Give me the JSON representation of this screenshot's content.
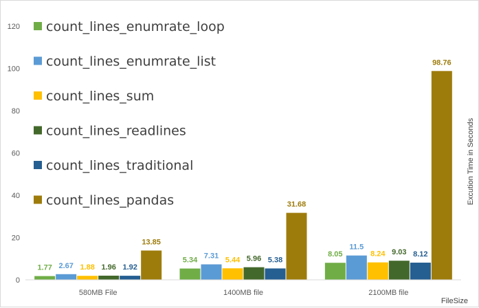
{
  "chart_data": {
    "type": "bar",
    "categories": [
      "580MB File",
      "1400MB file",
      "2100MB file"
    ],
    "series": [
      {
        "name": "count_lines_enumrate_loop",
        "color": "#70ad47",
        "values": [
          1.77,
          5.34,
          8.05
        ]
      },
      {
        "name": "count_lines_enumrate_list",
        "color": "#5b9bd5",
        "values": [
          2.67,
          7.31,
          11.5
        ]
      },
      {
        "name": "count_lines_sum",
        "color": "#ffc000",
        "values": [
          1.88,
          5.44,
          8.24
        ]
      },
      {
        "name": "count_lines_readlines",
        "color": "#43682b",
        "values": [
          1.96,
          5.96,
          9.03
        ]
      },
      {
        "name": "count_lines_traditional",
        "color": "#255e91",
        "values": [
          1.92,
          5.38,
          8.12
        ]
      },
      {
        "name": "count_lines_pandas",
        "color": "#9e7c0c",
        "values": [
          13.85,
          31.68,
          98.76
        ]
      }
    ],
    "data_labels": [
      [
        "1.77",
        "5.34",
        "8.05"
      ],
      [
        "2.67",
        "7.31",
        "11.5"
      ],
      [
        "1.88",
        "5.44",
        "8.24"
      ],
      [
        "1.96",
        "5.96",
        "9.03"
      ],
      [
        "1.92",
        "5.38",
        "8.12"
      ],
      [
        "13.85",
        "31.68",
        "98.76"
      ]
    ],
    "xlabel": "FileSize",
    "ylabel": "Excution Time in Seconds",
    "ylim": [
      0,
      120
    ],
    "yticks": [
      "0",
      "20",
      "40",
      "60",
      "80",
      "100",
      "120"
    ],
    "legend_position": "top-left",
    "grid": false
  }
}
